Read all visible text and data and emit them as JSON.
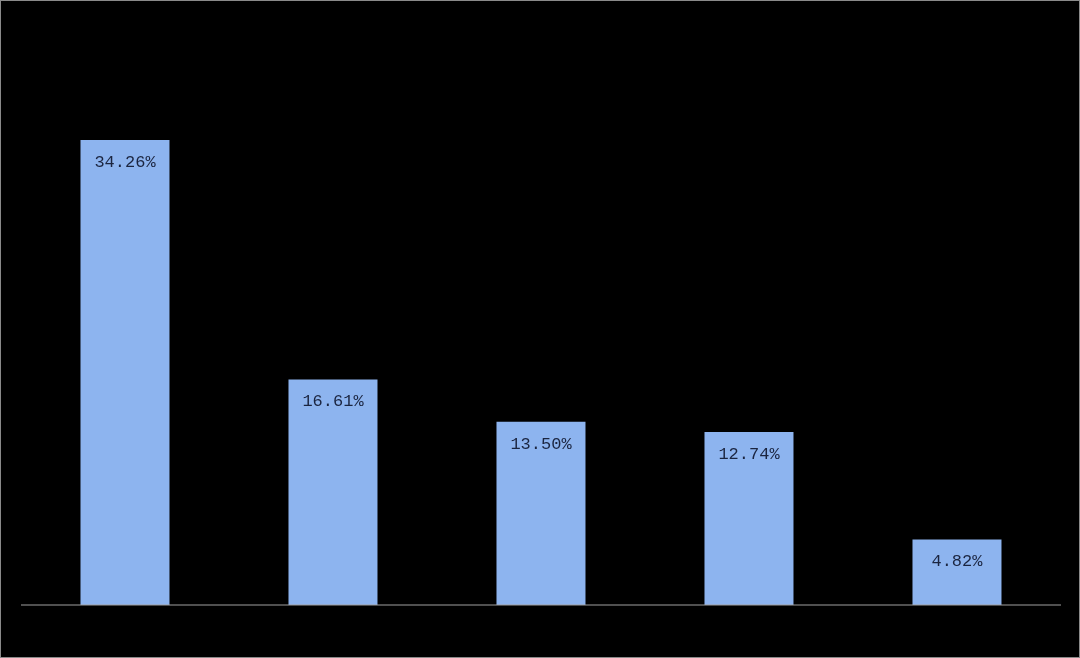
{
  "chart_data": {
    "type": "bar",
    "categories": [
      null,
      null,
      null,
      null,
      null
    ],
    "values": [
      34.26,
      16.61,
      13.5,
      12.74,
      4.82
    ],
    "value_labels": [
      "34.26%",
      "16.61%",
      "13.50%",
      "12.74%",
      "4.82%"
    ],
    "color": "#8db4ef"
  }
}
